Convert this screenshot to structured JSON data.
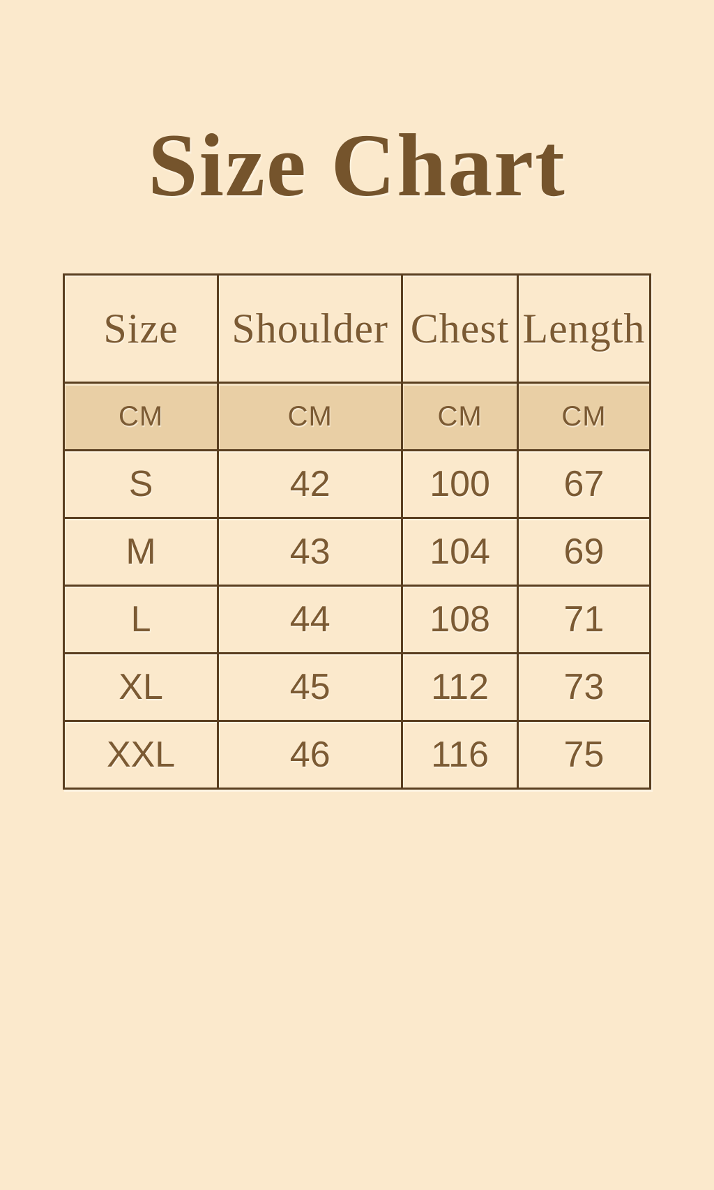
{
  "header": {
    "title": "Size Chart"
  },
  "colors": {
    "page_background": "#fbe9cc",
    "table_border": "#5a3f20",
    "units_row_background": "#e9cfa5",
    "text_brown": "#7b5a33",
    "title_brown": "#75542c"
  },
  "chart_data": {
    "type": "table",
    "title": "Size Chart",
    "columns": [
      "Size",
      "Shoulder",
      "Chest",
      "Length"
    ],
    "units_row": [
      "CM",
      "CM",
      "CM",
      "CM"
    ],
    "rows": [
      [
        "S",
        42,
        100,
        67
      ],
      [
        "M",
        43,
        104,
        69
      ],
      [
        "L",
        44,
        108,
        71
      ],
      [
        "XL",
        45,
        112,
        73
      ],
      [
        "XXL",
        46,
        116,
        75
      ]
    ]
  }
}
